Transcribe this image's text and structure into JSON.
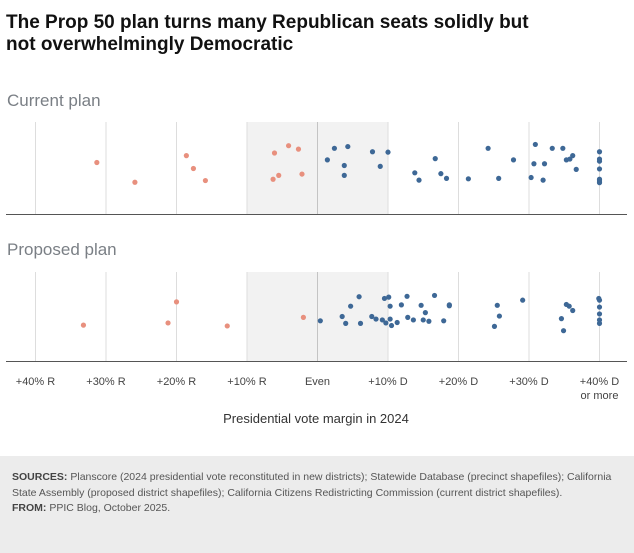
{
  "title_lines": [
    "The Prop 50 plan turns many Republican seats solidly but",
    "not overwhelmingly Democratic"
  ],
  "colors": {
    "republican": "#e8907e",
    "democratic": "#3e6896",
    "even_band": "#f2f2f2",
    "grid": "#dddddd",
    "grid_strong": "#c4c4c4"
  },
  "chart_data": {
    "type": "scatter",
    "xlabel": "Presidential vote margin in 2024",
    "xlim": [
      -45,
      42
    ],
    "even_band": [
      -10,
      10
    ],
    "ticks": [
      {
        "value": -40,
        "label": "+40% R"
      },
      {
        "value": -30,
        "label": "+30% R"
      },
      {
        "value": -20,
        "label": "+20% R"
      },
      {
        "value": -10,
        "label": "+10% R"
      },
      {
        "value": 0,
        "label": "Even"
      },
      {
        "value": 10,
        "label": "+10% D"
      },
      {
        "value": 20,
        "label": "+20% D"
      },
      {
        "value": 30,
        "label": "+30% D"
      },
      {
        "value": 40,
        "label": "+40% D",
        "label2": "or more"
      }
    ],
    "panels": [
      {
        "name": "Current plan",
        "republican": [
          {
            "x": -31.3,
            "r": 0.36
          },
          {
            "x": -25.9,
            "r": 0.82
          },
          {
            "x": -18.6,
            "r": 0.2
          },
          {
            "x": -17.6,
            "r": 0.5
          },
          {
            "x": -15.9,
            "r": 0.78
          },
          {
            "x": -6.3,
            "r": 0.75
          },
          {
            "x": -6.1,
            "r": 0.14
          },
          {
            "x": -5.5,
            "r": 0.66
          },
          {
            "x": -4.1,
            "r": -0.03
          },
          {
            "x": -2.7,
            "r": 0.05
          },
          {
            "x": -2.2,
            "r": 0.63
          }
        ],
        "democratic": [
          {
            "x": 1.4,
            "r": 0.3
          },
          {
            "x": 2.4,
            "r": 0.03
          },
          {
            "x": 3.8,
            "r": 0.43
          },
          {
            "x": 3.8,
            "r": 0.66
          },
          {
            "x": 4.3,
            "r": -0.01
          },
          {
            "x": 7.8,
            "r": 0.11
          },
          {
            "x": 8.9,
            "r": 0.45
          },
          {
            "x": 10.0,
            "r": 0.12
          },
          {
            "x": 13.8,
            "r": 0.6
          },
          {
            "x": 14.4,
            "r": 0.77
          },
          {
            "x": 16.7,
            "r": 0.27
          },
          {
            "x": 17.5,
            "r": 0.62
          },
          {
            "x": 18.3,
            "r": 0.73
          },
          {
            "x": 21.4,
            "r": 0.74
          },
          {
            "x": 24.2,
            "r": 0.03
          },
          {
            "x": 25.7,
            "r": 0.73
          },
          {
            "x": 27.8,
            "r": 0.3
          },
          {
            "x": 30.3,
            "r": 0.71
          },
          {
            "x": 30.7,
            "r": 0.39
          },
          {
            "x": 30.9,
            "r": -0.06
          },
          {
            "x": 32.0,
            "r": 0.77
          },
          {
            "x": 32.2,
            "r": 0.39
          },
          {
            "x": 33.3,
            "r": 0.03
          },
          {
            "x": 34.8,
            "r": 0.03
          },
          {
            "x": 35.3,
            "r": 0.3
          },
          {
            "x": 35.8,
            "r": 0.28
          },
          {
            "x": 36.2,
            "r": 0.2
          },
          {
            "x": 36.7,
            "r": 0.52
          },
          {
            "x": 40.0,
            "r": 0.11
          },
          {
            "x": 40.0,
            "r": 0.28
          },
          {
            "x": 40.0,
            "r": 0.33
          },
          {
            "x": 40.0,
            "r": 0.51
          },
          {
            "x": 40.0,
            "r": 0.75
          },
          {
            "x": 40.0,
            "r": 0.79
          },
          {
            "x": 40.0,
            "r": 0.83
          }
        ]
      },
      {
        "name": "Proposed plan",
        "republican": [
          {
            "x": -33.2,
            "r": 0.7
          },
          {
            "x": -21.2,
            "r": 0.65
          },
          {
            "x": -20.0,
            "r": 0.16
          },
          {
            "x": -12.8,
            "r": 0.72
          },
          {
            "x": -2.0,
            "r": 0.52
          }
        ],
        "democratic": [
          {
            "x": 0.4,
            "r": 0.6
          },
          {
            "x": 3.5,
            "r": 0.5
          },
          {
            "x": 4.0,
            "r": 0.66
          },
          {
            "x": 4.7,
            "r": 0.26
          },
          {
            "x": 5.9,
            "r": 0.04
          },
          {
            "x": 6.1,
            "r": 0.66
          },
          {
            "x": 7.7,
            "r": 0.5
          },
          {
            "x": 8.3,
            "r": 0.56
          },
          {
            "x": 9.2,
            "r": 0.58
          },
          {
            "x": 9.5,
            "r": 0.08
          },
          {
            "x": 9.7,
            "r": 0.65
          },
          {
            "x": 10.1,
            "r": 0.05
          },
          {
            "x": 10.3,
            "r": 0.26
          },
          {
            "x": 10.3,
            "r": 0.56
          },
          {
            "x": 10.5,
            "r": 0.71
          },
          {
            "x": 11.3,
            "r": 0.64
          },
          {
            "x": 11.9,
            "r": 0.23
          },
          {
            "x": 12.7,
            "r": 0.03
          },
          {
            "x": 12.8,
            "r": 0.52
          },
          {
            "x": 13.6,
            "r": 0.58
          },
          {
            "x": 14.7,
            "r": 0.24
          },
          {
            "x": 15.0,
            "r": 0.58
          },
          {
            "x": 15.3,
            "r": 0.41
          },
          {
            "x": 15.8,
            "r": 0.61
          },
          {
            "x": 16.6,
            "r": 0.01
          },
          {
            "x": 17.9,
            "r": 0.6
          },
          {
            "x": 18.7,
            "r": 0.23
          },
          {
            "x": 18.7,
            "r": 0.25
          },
          {
            "x": 25.1,
            "r": 0.73
          },
          {
            "x": 25.5,
            "r": 0.24
          },
          {
            "x": 25.8,
            "r": 0.49
          },
          {
            "x": 29.1,
            "r": 0.12
          },
          {
            "x": 34.6,
            "r": 0.55
          },
          {
            "x": 34.9,
            "r": 0.83
          },
          {
            "x": 35.3,
            "r": 0.22
          },
          {
            "x": 35.7,
            "r": 0.26
          },
          {
            "x": 36.2,
            "r": 0.36
          },
          {
            "x": 39.9,
            "r": 0.08
          },
          {
            "x": 40.0,
            "r": 0.12
          },
          {
            "x": 40.0,
            "r": 0.28
          },
          {
            "x": 40.0,
            "r": 0.44
          },
          {
            "x": 40.0,
            "r": 0.58
          },
          {
            "x": 40.0,
            "r": 0.66
          }
        ]
      }
    ]
  },
  "footer": {
    "sources_label": "SOURCES:",
    "sources_text": " Planscore (2024 presidential vote reconstituted in new districts); Statewide Database (precinct shapefiles); California State Assembly (proposed district shapefiles); California Citizens Redistricting Commission (current district shapefiles).",
    "from_label": "FROM:",
    "from_text": " PPIC Blog, October 2025."
  }
}
